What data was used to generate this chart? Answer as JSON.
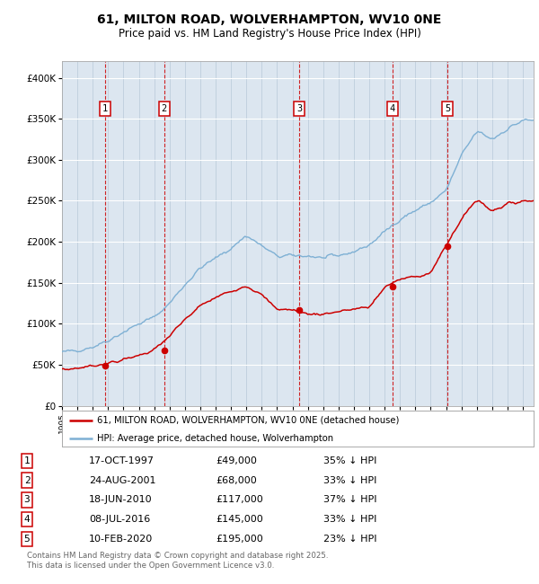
{
  "title": "61, MILTON ROAD, WOLVERHAMPTON, WV10 0NE",
  "subtitle": "Price paid vs. HM Land Registry's House Price Index (HPI)",
  "footer": "Contains HM Land Registry data © Crown copyright and database right 2025.\nThis data is licensed under the Open Government Licence v3.0.",
  "bg_color": "#dce6f0",
  "sale_dates_decimal": [
    1997.793,
    2001.647,
    2010.461,
    2016.519,
    2020.112
  ],
  "sale_prices": [
    49000,
    68000,
    117000,
    145000,
    195000
  ],
  "sale_labels": [
    "1",
    "2",
    "3",
    "4",
    "5"
  ],
  "table_rows": [
    [
      "1",
      "17-OCT-1997",
      "£49,000",
      "35% ↓ HPI"
    ],
    [
      "2",
      "24-AUG-2001",
      "£68,000",
      "33% ↓ HPI"
    ],
    [
      "3",
      "18-JUN-2010",
      "£117,000",
      "37% ↓ HPI"
    ],
    [
      "4",
      "08-JUL-2016",
      "£145,000",
      "33% ↓ HPI"
    ],
    [
      "5",
      "10-FEB-2020",
      "£195,000",
      "23% ↓ HPI"
    ]
  ],
  "legend_entries": [
    "61, MILTON ROAD, WOLVERHAMPTON, WV10 0NE (detached house)",
    "HPI: Average price, detached house, Wolverhampton"
  ],
  "red_color": "#cc0000",
  "blue_color": "#7eb0d4",
  "ylim": [
    0,
    420000
  ],
  "yticks": [
    0,
    50000,
    100000,
    150000,
    200000,
    250000,
    300000,
    350000,
    400000
  ],
  "ytick_labels": [
    "£0",
    "£50K",
    "£100K",
    "£150K",
    "£200K",
    "£250K",
    "£300K",
    "£350K",
    "£400K"
  ],
  "xlim_start": 1995.3,
  "xlim_end": 2025.7,
  "hpi_anchors_x": [
    1995,
    1996,
    1997,
    1998,
    1999,
    2000,
    2001,
    2002,
    2003,
    2004,
    2005,
    2006,
    2007,
    2008,
    2009,
    2010,
    2011,
    2012,
    2013,
    2014,
    2015,
    2016,
    2017,
    2018,
    2019,
    2020,
    2021,
    2022,
    2023,
    2024,
    2025
  ],
  "hpi_anchors_y": [
    65000,
    68000,
    72000,
    80000,
    90000,
    100000,
    108000,
    125000,
    148000,
    168000,
    180000,
    192000,
    208000,
    195000,
    182000,
    183000,
    183000,
    180000,
    183000,
    188000,
    196000,
    212000,
    228000,
    238000,
    248000,
    262000,
    305000,
    335000,
    325000,
    338000,
    348000
  ],
  "prop_anchors_x": [
    1995,
    1996,
    1997,
    1998,
    1999,
    2000,
    2001,
    2002,
    2003,
    2004,
    2005,
    2006,
    2007,
    2008,
    2009,
    2010,
    2011,
    2012,
    2013,
    2014,
    2015,
    2016,
    2017,
    2018,
    2019,
    2020,
    2021,
    2022,
    2023,
    2024,
    2025
  ],
  "prop_anchors_y": [
    44000,
    46000,
    49000,
    52000,
    56000,
    62000,
    68000,
    85000,
    105000,
    122000,
    132000,
    140000,
    147000,
    135000,
    118000,
    117000,
    112000,
    112000,
    115000,
    118000,
    120000,
    145000,
    154000,
    158000,
    162000,
    195000,
    228000,
    252000,
    238000,
    246000,
    250000
  ],
  "hpi_noise_seed": 42,
  "prop_noise_seed": 7
}
